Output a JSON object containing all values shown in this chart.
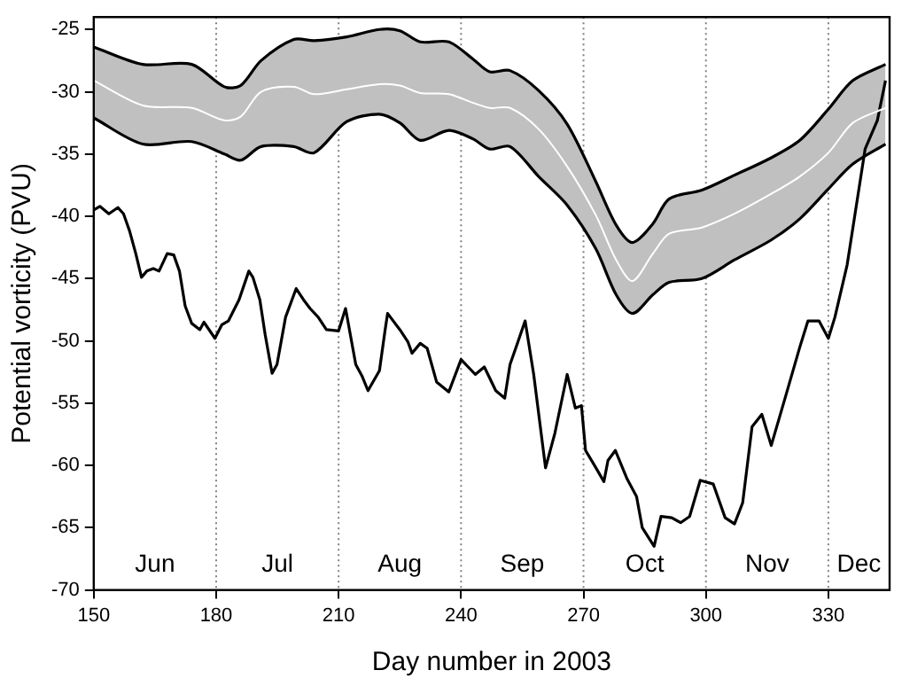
{
  "chart_data": {
    "type": "line",
    "xlabel": "Day number in 2003",
    "ylabel": "Potential vorticity (PVU)",
    "xlim": [
      150,
      345
    ],
    "xticks": [
      150,
      180,
      210,
      240,
      270,
      300,
      330
    ],
    "ylim": [
      -70,
      -24
    ],
    "yticks": [
      -70,
      -65,
      -60,
      -55,
      -50,
      -45,
      -40,
      -35,
      -30,
      -25
    ],
    "grid": false,
    "legend": false,
    "marker": "none",
    "line_style": "solid",
    "series": [
      {
        "color": "#ffffff",
        "x": [
          150,
          162,
          174,
          182,
          186,
          191,
          199,
          204,
          212,
          220,
          225,
          230,
          237,
          243,
          247,
          252,
          259,
          266,
          273,
          278,
          282,
          287,
          291,
          299,
          307,
          316,
          323,
          330,
          336,
          344
        ],
        "values": [
          -29.1,
          -31.1,
          -31.3,
          -32.3,
          -32.0,
          -30.0,
          -29.6,
          -30.2,
          -29.8,
          -29.4,
          -29.5,
          -30.1,
          -30.2,
          -30.9,
          -31.3,
          -31.3,
          -33.0,
          -36.0,
          -39.9,
          -43.5,
          -45.2,
          -43.0,
          -41.4,
          -40.9,
          -39.8,
          -38.2,
          -36.8,
          -34.9,
          -32.5,
          -31.3
        ],
        "upper": [
          -26.4,
          -27.8,
          -27.8,
          -29.6,
          -29.5,
          -27.5,
          -25.8,
          -25.9,
          -25.6,
          -25.0,
          -25.1,
          -26.0,
          -26.0,
          -27.4,
          -28.4,
          -28.3,
          -29.9,
          -32.6,
          -37.2,
          -40.7,
          -42.1,
          -40.6,
          -38.6,
          -37.9,
          -36.7,
          -35.3,
          -33.9,
          -31.4,
          -29.1,
          -27.8
        ],
        "lower": [
          -32.1,
          -34.2,
          -34.0,
          -35.0,
          -35.5,
          -34.4,
          -34.4,
          -34.9,
          -32.4,
          -31.8,
          -32.5,
          -33.9,
          -33.1,
          -33.8,
          -34.6,
          -34.4,
          -36.8,
          -39.1,
          -42.6,
          -46.3,
          -47.8,
          -46.3,
          -45.3,
          -45.0,
          -43.5,
          -41.9,
          -40.2,
          -37.8,
          -35.8,
          -34.2
        ]
      },
      {
        "color": "#000000",
        "x": [
          150,
          162,
          174,
          182,
          186,
          191,
          199,
          204,
          212,
          220,
          225,
          230,
          237,
          243,
          247,
          252,
          259,
          266,
          273,
          278,
          282,
          287,
          291,
          299,
          307,
          316,
          323,
          330,
          336,
          344
        ],
        "values": [
          -26.4,
          -27.8,
          -27.8,
          -29.6,
          -29.5,
          -27.5,
          -25.8,
          -25.9,
          -25.6,
          -25.0,
          -25.1,
          -26.0,
          -26.0,
          -27.4,
          -28.4,
          -28.3,
          -29.9,
          -32.6,
          -37.2,
          -40.7,
          -42.1,
          -40.6,
          -38.6,
          -37.9,
          -36.7,
          -35.3,
          -33.9,
          -31.4,
          -29.1,
          -27.8
        ]
      },
      {
        "color": "#000000",
        "x": [
          150,
          162,
          174,
          182,
          186,
          191,
          199,
          204,
          212,
          220,
          225,
          230,
          237,
          243,
          247,
          252,
          259,
          266,
          273,
          278,
          282,
          287,
          291,
          299,
          307,
          316,
          323,
          330,
          336,
          344
        ],
        "values": [
          -32.1,
          -34.2,
          -34.0,
          -35.0,
          -35.5,
          -34.4,
          -34.4,
          -34.9,
          -32.4,
          -31.8,
          -32.5,
          -33.9,
          -33.1,
          -33.8,
          -34.6,
          -34.4,
          -36.8,
          -39.1,
          -42.6,
          -46.3,
          -47.8,
          -46.3,
          -45.3,
          -45.0,
          -43.5,
          -41.9,
          -40.2,
          -37.8,
          -35.8,
          -34.2
        ]
      },
      {
        "color": "#000000",
        "x": [
          150,
          151.5,
          153.7,
          155.9,
          157.3,
          158.8,
          160.3,
          161.7,
          163,
          164.6,
          166,
          168,
          169.6,
          171,
          172.4,
          174,
          176,
          177,
          179.7,
          181.4,
          183,
          185.6,
          188,
          189,
          190.7,
          192,
          192.6,
          193.7,
          194.9,
          197,
          199.6,
          201.4,
          203,
          205,
          207,
          210,
          211.7,
          214.2,
          215.7,
          217.2,
          220,
          221.4,
          222,
          225,
          227,
          228,
          230,
          231.7,
          234,
          237,
          240,
          243.5,
          245.7,
          248.5,
          250.7,
          252,
          253.5,
          255.7,
          257.8,
          260.7,
          263,
          266,
          268,
          269.5,
          270.5,
          272.7,
          275,
          276,
          277.8,
          280.7,
          283,
          284.4,
          287.3,
          289,
          291.6,
          293.8,
          296,
          298.6,
          301.8,
          304.7,
          307,
          309,
          311.3,
          313.7,
          316,
          319.3,
          323,
          325,
          327.7,
          330,
          331.6,
          334.6,
          339,
          342,
          344
        ],
        "values": [
          -39.5,
          -39.2,
          -39.8,
          -39.3,
          -39.8,
          -41.2,
          -43.0,
          -44.9,
          -44.4,
          -44.2,
          -44.4,
          -43.0,
          -43.1,
          -44.4,
          -47.2,
          -48.6,
          -49.1,
          -48.5,
          -49.8,
          -48.7,
          -48.4,
          -46.7,
          -44.4,
          -44.9,
          -46.7,
          -49.5,
          -50.6,
          -52.6,
          -51.9,
          -48.1,
          -45.8,
          -46.7,
          -47.4,
          -48.1,
          -49.1,
          -49.2,
          -47.4,
          -51.9,
          -52.8,
          -54.0,
          -52.4,
          -49.1,
          -47.8,
          -49.1,
          -50.1,
          -51.0,
          -50.2,
          -50.6,
          -53.3,
          -54.1,
          -51.5,
          -52.7,
          -52.1,
          -54.0,
          -54.6,
          -51.9,
          -50.5,
          -48.4,
          -52.7,
          -60.2,
          -57.4,
          -52.7,
          -55.4,
          -55.2,
          -58.8,
          -60.0,
          -61.3,
          -59.6,
          -58.8,
          -61.1,
          -62.5,
          -65.0,
          -66.5,
          -64.1,
          -64.2,
          -64.6,
          -64.1,
          -61.2,
          -61.5,
          -64.2,
          -64.7,
          -63.0,
          -56.9,
          -55.9,
          -58.4,
          -54.7,
          -50.5,
          -48.4,
          -48.4,
          -49.8,
          -48.1,
          -43.9,
          -34.6,
          -32.3,
          -29.1
        ]
      }
    ],
    "ref_lines": [
      {
        "axis": "x",
        "value": 180,
        "line_style": "dotted",
        "color": "#808080"
      },
      {
        "axis": "x",
        "value": 210,
        "line_style": "dotted",
        "color": "#808080"
      },
      {
        "axis": "x",
        "value": 240,
        "line_style": "dotted",
        "color": "#808080"
      },
      {
        "axis": "x",
        "value": 270,
        "line_style": "dotted",
        "color": "#808080"
      },
      {
        "axis": "x",
        "value": 300,
        "line_style": "dotted",
        "color": "#808080"
      },
      {
        "axis": "x",
        "value": 330,
        "line_style": "dotted",
        "color": "#808080"
      }
    ],
    "annotations": [
      "Jun",
      "Jul",
      "Aug",
      "Sep",
      "Oct",
      "Nov",
      "Dec"
    ]
  }
}
